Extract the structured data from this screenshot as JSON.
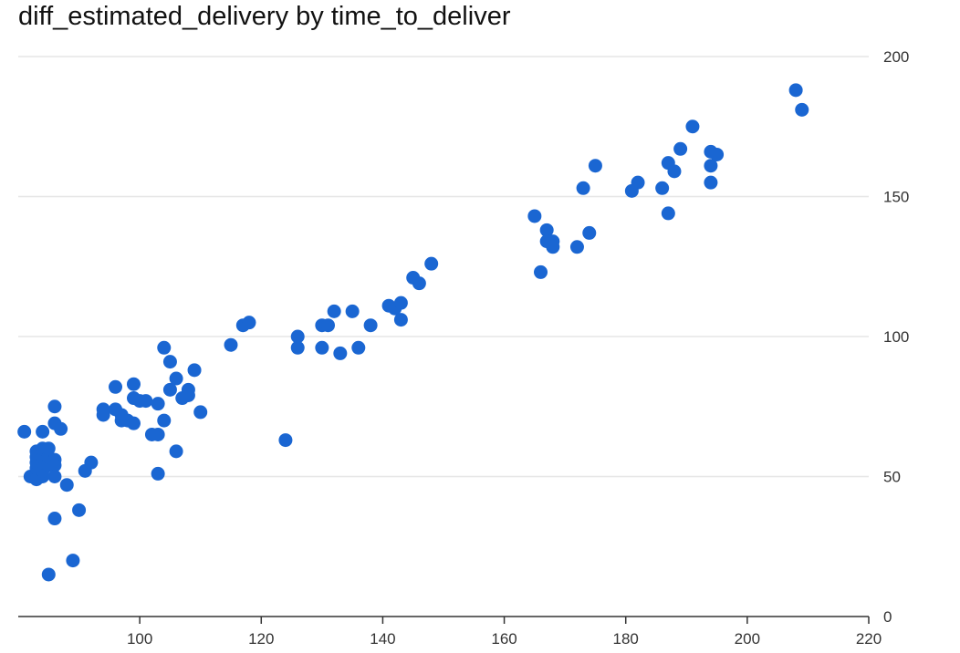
{
  "chart_data": {
    "type": "scatter",
    "title": "diff_estimated_delivery by time_to_deliver",
    "xlabel": "",
    "ylabel": "",
    "xlim": [
      80,
      220
    ],
    "ylim": [
      0,
      200
    ],
    "x_ticks": [
      100,
      120,
      140,
      160,
      180,
      200,
      220
    ],
    "y_ticks": [
      0,
      50,
      100,
      150,
      200
    ],
    "y_axis_side": "right",
    "grid": "horizontal",
    "legend": "none",
    "marker_color": "#1a66d2",
    "series": [
      {
        "points": [
          [
            81,
            66
          ],
          [
            82,
            50
          ],
          [
            83,
            51
          ],
          [
            83,
            49
          ],
          [
            83,
            53
          ],
          [
            83,
            55
          ],
          [
            83,
            59
          ],
          [
            83,
            57
          ],
          [
            84,
            50
          ],
          [
            84,
            52
          ],
          [
            84,
            55
          ],
          [
            84,
            57
          ],
          [
            84,
            60
          ],
          [
            84,
            66
          ],
          [
            85,
            54
          ],
          [
            85,
            57
          ],
          [
            85,
            60
          ],
          [
            85,
            15
          ],
          [
            86,
            75
          ],
          [
            86,
            69
          ],
          [
            86,
            56
          ],
          [
            86,
            54
          ],
          [
            86,
            50
          ],
          [
            86,
            35
          ],
          [
            87,
            67
          ],
          [
            88,
            47
          ],
          [
            89,
            20
          ],
          [
            90,
            38
          ],
          [
            91,
            52
          ],
          [
            92,
            55
          ],
          [
            94,
            74
          ],
          [
            94,
            72
          ],
          [
            96,
            82
          ],
          [
            96,
            74
          ],
          [
            97,
            72
          ],
          [
            97,
            70
          ],
          [
            98,
            70
          ],
          [
            99,
            69
          ],
          [
            99,
            78
          ],
          [
            99,
            83
          ],
          [
            100,
            77
          ],
          [
            101,
            77
          ],
          [
            102,
            65
          ],
          [
            103,
            65
          ],
          [
            103,
            76
          ],
          [
            103,
            51
          ],
          [
            104,
            96
          ],
          [
            104,
            70
          ],
          [
            105,
            91
          ],
          [
            105,
            81
          ],
          [
            106,
            85
          ],
          [
            106,
            59
          ],
          [
            107,
            78
          ],
          [
            108,
            81
          ],
          [
            108,
            79
          ],
          [
            109,
            88
          ],
          [
            110,
            73
          ],
          [
            115,
            97
          ],
          [
            117,
            104
          ],
          [
            118,
            105
          ],
          [
            124,
            63
          ],
          [
            126,
            100
          ],
          [
            126,
            96
          ],
          [
            130,
            104
          ],
          [
            130,
            96
          ],
          [
            131,
            104
          ],
          [
            132,
            109
          ],
          [
            133,
            94
          ],
          [
            135,
            109
          ],
          [
            136,
            96
          ],
          [
            138,
            104
          ],
          [
            141,
            111
          ],
          [
            142,
            110
          ],
          [
            143,
            112
          ],
          [
            143,
            106
          ],
          [
            145,
            121
          ],
          [
            146,
            119
          ],
          [
            148,
            126
          ],
          [
            165,
            143
          ],
          [
            166,
            123
          ],
          [
            167,
            138
          ],
          [
            167,
            134
          ],
          [
            168,
            134
          ],
          [
            168,
            132
          ],
          [
            172,
            132
          ],
          [
            173,
            153
          ],
          [
            174,
            137
          ],
          [
            175,
            161
          ],
          [
            181,
            152
          ],
          [
            182,
            155
          ],
          [
            186,
            153
          ],
          [
            187,
            162
          ],
          [
            187,
            144
          ],
          [
            188,
            159
          ],
          [
            189,
            167
          ],
          [
            191,
            175
          ],
          [
            194,
            166
          ],
          [
            194,
            161
          ],
          [
            194,
            155
          ],
          [
            195,
            165
          ],
          [
            208,
            188
          ],
          [
            209,
            181
          ]
        ]
      }
    ]
  }
}
